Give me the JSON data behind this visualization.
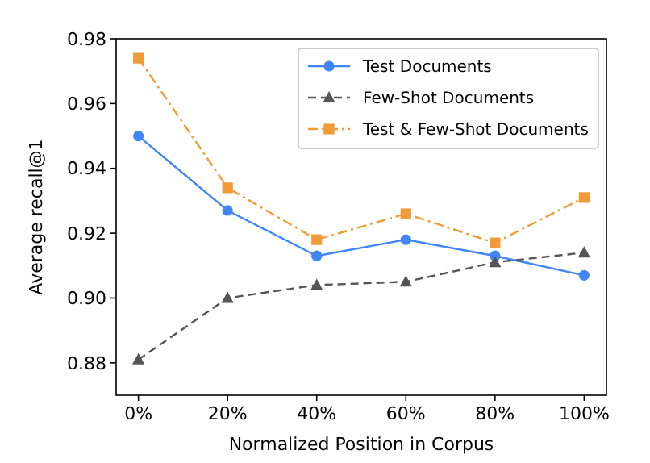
{
  "chart_data": {
    "type": "line",
    "xlabel": "Normalized Position in Corpus",
    "ylabel": "Average recall@1",
    "x": [
      0,
      20,
      40,
      60,
      80,
      100
    ],
    "xlim": [
      -5,
      105
    ],
    "xticks": [
      {
        "value": 0,
        "label": "0%"
      },
      {
        "value": 20,
        "label": "20%"
      },
      {
        "value": 40,
        "label": "40%"
      },
      {
        "value": 60,
        "label": "60%"
      },
      {
        "value": 80,
        "label": "80%"
      },
      {
        "value": 100,
        "label": "100%"
      }
    ],
    "ylim": [
      0.87,
      0.98
    ],
    "yticks": [
      {
        "value": 0.88,
        "label": "0.88"
      },
      {
        "value": 0.9,
        "label": "0.90"
      },
      {
        "value": 0.92,
        "label": "0.92"
      },
      {
        "value": 0.94,
        "label": "0.94"
      },
      {
        "value": 0.96,
        "label": "0.96"
      },
      {
        "value": 0.98,
        "label": "0.98"
      }
    ],
    "series": [
      {
        "name": "Test Documents",
        "color": "#4285f4",
        "marker": "circle",
        "line_style": "solid",
        "values": [
          0.95,
          0.927,
          0.913,
          0.918,
          0.913,
          0.907
        ]
      },
      {
        "name": "Few-Shot Documents",
        "color": "#555555",
        "marker": "triangle",
        "line_style": "dashed",
        "values": [
          0.881,
          0.9,
          0.904,
          0.905,
          0.911,
          0.914
        ]
      },
      {
        "name": "Test & Few-Shot Documents",
        "color": "#f09a38",
        "marker": "square",
        "line_style": "dashdot",
        "values": [
          0.974,
          0.934,
          0.918,
          0.926,
          0.917,
          0.931
        ]
      }
    ],
    "legend": "top right",
    "grid": false
  }
}
